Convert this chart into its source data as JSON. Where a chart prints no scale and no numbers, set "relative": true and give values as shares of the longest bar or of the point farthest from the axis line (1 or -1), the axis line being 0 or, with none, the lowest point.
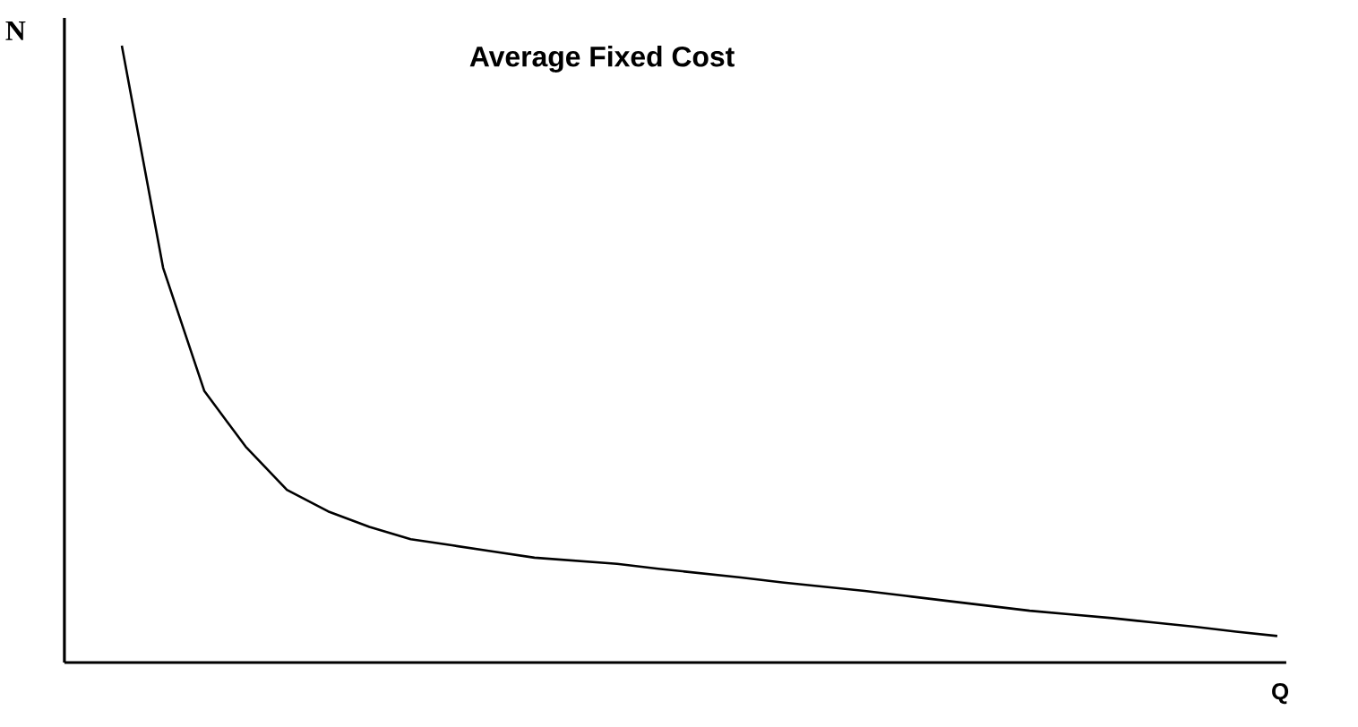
{
  "chart_data": {
    "type": "line",
    "title": "Average Fixed Cost",
    "xlabel": "Q",
    "ylabel": "N",
    "relative": true,
    "color": "#000000",
    "categories": [
      null,
      null,
      null,
      null,
      null,
      null,
      null,
      null,
      null,
      null,
      null,
      null,
      null,
      null,
      null,
      null,
      null,
      null,
      null,
      null,
      null,
      null,
      null,
      null,
      null,
      null,
      null,
      null,
      null
    ],
    "values": [
      1.0,
      0.64,
      0.44,
      0.35,
      0.28,
      0.245,
      0.22,
      0.2,
      0.19,
      0.18,
      0.17,
      0.165,
      0.16,
      0.152,
      0.145,
      0.138,
      0.13,
      0.123,
      0.116,
      0.108,
      0.1,
      0.092,
      0.084,
      0.078,
      0.072,
      0.065,
      0.058,
      0.05,
      0.043
    ]
  }
}
